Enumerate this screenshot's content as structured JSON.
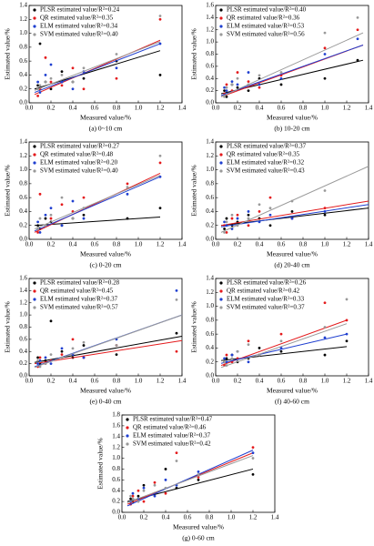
{
  "chart_data": [
    {
      "type": "scatter",
      "caption": "(a) 0~10 cm",
      "xlabel": "Measured value/%",
      "ylabel": "Estimated value/%",
      "xlim": [
        0,
        1.4
      ],
      "ylim": [
        0,
        1.4
      ],
      "xticks": [
        {
          "value": 0,
          "label": "0.0"
        },
        0.2,
        0.4,
        0.6,
        0.8,
        {
          "value": 1,
          "label": "1.0"
        },
        1.2,
        1.4
      ],
      "yticks": [
        {
          "value": 0,
          "label": "0.0"
        },
        0.2,
        0.4,
        0.6,
        0.8,
        {
          "value": 1,
          "label": "1.0"
        },
        1.2,
        1.4
      ],
      "x": [
        0.08,
        0.1,
        0.15,
        0.2,
        0.3,
        0.4,
        0.5,
        0.8,
        1.2
      ],
      "series": [
        {
          "name": "PLSR estimated value/R²=0.24",
          "color": "#000000",
          "values": [
            0.25,
            0.85,
            0.3,
            0.2,
            0.45,
            0.3,
            0.35,
            0.6,
            0.4
          ],
          "fit_x": [
            0.05,
            1.2
          ],
          "fit_y": [
            0.2,
            0.75
          ]
        },
        {
          "name": "QR estimated value/R²=0.35",
          "color": "#e41a1c",
          "values": [
            0.1,
            0.2,
            0.65,
            0.3,
            0.25,
            0.5,
            0.2,
            0.35,
            1.2
          ],
          "fit_x": [
            0.05,
            1.2
          ],
          "fit_y": [
            0.12,
            0.9
          ]
        },
        {
          "name": "ELM estimated value/R²=0.34",
          "color": "#1f3fd0",
          "values": [
            0.3,
            0.15,
            0.4,
            0.55,
            0.3,
            0.2,
            0.45,
            0.5,
            0.85
          ],
          "fit_x": [
            0.05,
            1.2
          ],
          "fit_y": [
            0.15,
            0.85
          ]
        },
        {
          "name": "SVM estimated value/R²=0.40",
          "color": "#999999",
          "values": [
            0.2,
            0.25,
            0.3,
            0.35,
            0.4,
            0.3,
            0.5,
            0.7,
            1.25
          ],
          "fit_x": [
            0.05,
            1.2
          ],
          "fit_y": [
            0.18,
            0.88
          ]
        }
      ]
    },
    {
      "type": "scatter",
      "caption": "(b) 10-20 cm",
      "xlabel": "Measured value/%",
      "ylabel": "Estimated value/%",
      "xlim": [
        0,
        1.4
      ],
      "ylim": [
        0,
        1.6
      ],
      "xticks": [
        {
          "value": 0,
          "label": "0.0"
        },
        0.2,
        0.4,
        0.6,
        0.8,
        {
          "value": 1,
          "label": "1.0"
        },
        1.2,
        1.4
      ],
      "yticks": [
        {
          "value": 0,
          "label": "0.0"
        },
        0.2,
        0.4,
        0.6,
        0.8,
        {
          "value": 1,
          "label": "1.0"
        },
        1.2,
        1.4,
        1.6
      ],
      "x": [
        0.08,
        0.1,
        0.15,
        0.2,
        0.3,
        0.4,
        0.6,
        1.0,
        1.3
      ],
      "series": [
        {
          "name": "PLSR estimated value/R²=0.40",
          "color": "#000000",
          "values": [
            0.2,
            0.1,
            0.3,
            0.25,
            0.2,
            0.4,
            0.3,
            0.4,
            0.7
          ],
          "fit_x": [
            0.05,
            1.35
          ],
          "fit_y": [
            0.15,
            0.7
          ]
        },
        {
          "name": "QR estimated value/R²=0.36",
          "color": "#e41a1c",
          "values": [
            0.15,
            0.3,
            0.2,
            0.5,
            0.35,
            0.25,
            0.45,
            0.9,
            1.2
          ],
          "fit_x": [
            0.05,
            1.35
          ],
          "fit_y": [
            0.1,
            0.95
          ]
        },
        {
          "name": "ELM estimated value/R²=0.53",
          "color": "#1f3fd0",
          "values": [
            0.25,
            0.2,
            0.35,
            0.3,
            0.5,
            0.3,
            0.4,
            0.8,
            1.05
          ],
          "fit_x": [
            0.05,
            1.35
          ],
          "fit_y": [
            0.12,
            0.95
          ]
        },
        {
          "name": "SVM estimated value/R²=0.56",
          "color": "#999999",
          "values": [
            0.1,
            0.25,
            0.3,
            0.4,
            0.3,
            0.45,
            0.5,
            1.15,
            1.4
          ],
          "fit_x": [
            0.05,
            1.35
          ],
          "fit_y": [
            0.1,
            1.15
          ]
        }
      ]
    },
    {
      "type": "scatter",
      "caption": "(c) 0-20 cm",
      "xlabel": "Measured value/%",
      "ylabel": "Estimated value/%",
      "xlim": [
        0,
        1.4
      ],
      "ylim": [
        0,
        1.4
      ],
      "xticks": [
        {
          "value": 0,
          "label": "0.0"
        },
        0.2,
        0.4,
        0.6,
        0.8,
        {
          "value": 1,
          "label": "1.0"
        },
        1.2,
        1.4
      ],
      "yticks": [
        {
          "value": 0,
          "label": "0.0"
        },
        0.2,
        0.4,
        0.6,
        0.8,
        {
          "value": 1,
          "label": "1.0"
        },
        1.2,
        1.4
      ],
      "x": [
        0.08,
        0.1,
        0.15,
        0.2,
        0.3,
        0.4,
        0.5,
        0.9,
        1.2
      ],
      "series": [
        {
          "name": "PLSR estimated value/R²=0.27",
          "color": "#000000",
          "values": [
            0.2,
            0.15,
            0.3,
            0.25,
            0.2,
            0.3,
            0.35,
            0.3,
            0.45
          ],
          "fit_x": [
            0.05,
            1.2
          ],
          "fit_y": [
            0.2,
            0.32
          ]
        },
        {
          "name": "QR estimated value/R²=0.48",
          "color": "#e41a1c",
          "values": [
            0.1,
            0.65,
            0.2,
            0.3,
            0.5,
            0.4,
            0.6,
            0.8,
            1.1
          ],
          "fit_x": [
            0.05,
            1.2
          ],
          "fit_y": [
            0.1,
            0.95
          ]
        },
        {
          "name": "ELM estimated value/R²=0.20",
          "color": "#1f3fd0",
          "values": [
            0.25,
            0.1,
            0.35,
            0.45,
            0.2,
            0.55,
            0.3,
            0.65,
            0.9
          ],
          "fit_x": [
            0.05,
            1.2
          ],
          "fit_y": [
            0.12,
            0.9
          ]
        },
        {
          "name": "SVM estimated value/R²=0.40",
          "color": "#999999",
          "values": [
            0.15,
            0.3,
            0.2,
            0.35,
            0.6,
            0.3,
            0.45,
            0.75,
            1.2
          ],
          "fit_x": [
            0.05,
            1.2
          ],
          "fit_y": [
            0.15,
            0.92
          ]
        }
      ]
    },
    {
      "type": "scatter",
      "caption": "(d) 20-40 cm",
      "xlabel": "Measured value/%",
      "ylabel": "Estimated value/%",
      "xlim": [
        0,
        1.4
      ],
      "ylim": [
        0,
        1.4
      ],
      "xticks": [
        {
          "value": 0,
          "label": "0.0"
        },
        0.2,
        0.4,
        0.6,
        0.8,
        {
          "value": 1,
          "label": "1.0"
        },
        1.2,
        1.4
      ],
      "yticks": [
        {
          "value": 0,
          "label": "0.0"
        },
        0.2,
        0.4,
        0.6,
        0.8,
        {
          "value": 1,
          "label": "1.0"
        },
        1.2,
        1.4
      ],
      "x": [
        0.08,
        0.1,
        0.15,
        0.2,
        0.3,
        0.4,
        0.5,
        0.7,
        1.0
      ],
      "series": [
        {
          "name": "PLSR estimated value/R²=0.37",
          "color": "#000000",
          "values": [
            0.15,
            0.3,
            0.2,
            0.25,
            0.35,
            0.3,
            0.2,
            0.4,
            0.35
          ],
          "fit_x": [
            0.05,
            1.4
          ],
          "fit_y": [
            0.2,
            0.45
          ]
        },
        {
          "name": "QR estimated value/R²=0.35",
          "color": "#e41a1c",
          "values": [
            0.2,
            0.1,
            0.3,
            0.35,
            0.2,
            0.4,
            0.6,
            0.3,
            0.45
          ],
          "fit_x": [
            0.05,
            1.4
          ],
          "fit_y": [
            0.2,
            0.55
          ]
        },
        {
          "name": "ELM estimated value/R²=0.32",
          "color": "#1f3fd0",
          "values": [
            0.25,
            0.2,
            0.15,
            0.3,
            0.4,
            0.25,
            0.35,
            0.3,
            0.4
          ],
          "fit_x": [
            0.05,
            1.4
          ],
          "fit_y": [
            0.18,
            0.5
          ]
        },
        {
          "name": "SVM estimated value/R²=0.43",
          "color": "#999999",
          "values": [
            0.1,
            0.25,
            0.35,
            0.2,
            0.3,
            0.5,
            0.45,
            0.55,
            0.7
          ],
          "fit_x": [
            0.05,
            1.4
          ],
          "fit_y": [
            0.1,
            1.05
          ]
        }
      ]
    },
    {
      "type": "scatter",
      "caption": "(e) 0-40 cm",
      "xlabel": "Measured value/%",
      "ylabel": "Estimated value/%",
      "xlim": [
        0,
        1.4
      ],
      "ylim": [
        0,
        1.6
      ],
      "xticks": [
        {
          "value": 0,
          "label": "0.0"
        },
        0.2,
        0.4,
        0.6,
        0.8,
        {
          "value": 1,
          "label": "1.0"
        },
        1.2,
        1.4
      ],
      "yticks": [
        {
          "value": 0,
          "label": "0.0"
        },
        0.2,
        0.4,
        0.6,
        0.8,
        {
          "value": 1,
          "label": "1.0"
        },
        1.2,
        1.4,
        1.6
      ],
      "x": [
        0.08,
        0.1,
        0.15,
        0.2,
        0.3,
        0.4,
        0.5,
        0.8,
        1.35
      ],
      "series": [
        {
          "name": "PLSR estimated value/R²=0.28",
          "color": "#000000",
          "values": [
            0.3,
            0.2,
            0.25,
            0.9,
            0.4,
            0.3,
            0.5,
            0.35,
            0.7
          ],
          "fit_x": [
            0.05,
            1.4
          ],
          "fit_y": [
            0.22,
            0.65
          ]
        },
        {
          "name": "QR estimated value/R²=0.45",
          "color": "#e41a1c",
          "values": [
            0.15,
            0.3,
            0.2,
            0.25,
            0.35,
            0.6,
            0.3,
            0.5,
            0.4
          ],
          "fit_x": [
            0.05,
            1.4
          ],
          "fit_y": [
            0.2,
            0.58
          ]
        },
        {
          "name": "ELM estimated value/R²=0.37",
          "color": "#1f3fd0",
          "values": [
            0.2,
            0.25,
            0.3,
            0.2,
            0.45,
            0.35,
            0.3,
            0.6,
            1.4
          ],
          "fit_x": [
            0.05,
            1.4
          ],
          "fit_y": [
            0.15,
            1.0
          ]
        },
        {
          "name": "SVM estimated value/R²=0.57",
          "color": "#999999",
          "values": [
            0.25,
            0.15,
            0.2,
            0.35,
            0.3,
            0.45,
            0.55,
            0.5,
            1.25
          ],
          "fit_x": [
            0.05,
            1.4
          ],
          "fit_y": [
            0.14,
            1.0
          ]
        }
      ]
    },
    {
      "type": "scatter",
      "caption": "(f) 40-60 cm",
      "xlabel": "Measured value/%",
      "ylabel": "Estimated value/%",
      "xlim": [
        0,
        1.4
      ],
      "ylim": [
        0,
        1.4
      ],
      "xticks": [
        {
          "value": 0,
          "label": "0.0"
        },
        0.2,
        0.4,
        0.6,
        0.8,
        {
          "value": 1,
          "label": "1.0"
        },
        1.2,
        1.4
      ],
      "yticks": [
        {
          "value": 0,
          "label": "0.0"
        },
        0.2,
        0.4,
        0.6,
        0.8,
        {
          "value": 1,
          "label": "1.0"
        },
        1.2,
        1.4
      ],
      "x": [
        0.08,
        0.1,
        0.15,
        0.2,
        0.3,
        0.4,
        0.6,
        1.0,
        1.2
      ],
      "series": [
        {
          "name": "PLSR estimated value/R²=0.26",
          "color": "#000000",
          "values": [
            0.2,
            0.25,
            0.3,
            0.2,
            0.25,
            0.4,
            0.35,
            0.3,
            0.5
          ],
          "fit_x": [
            0.05,
            1.2
          ],
          "fit_y": [
            0.22,
            0.42
          ]
        },
        {
          "name": "QR estimated value/R²=0.42",
          "color": "#e41a1c",
          "values": [
            0.15,
            0.3,
            0.2,
            0.25,
            0.5,
            0.3,
            0.6,
            1.05,
            0.8
          ],
          "fit_x": [
            0.05,
            1.2
          ],
          "fit_y": [
            0.15,
            0.8
          ]
        },
        {
          "name": "ELM estimated value/R²=0.33",
          "color": "#1f3fd0",
          "values": [
            0.25,
            0.2,
            0.3,
            0.35,
            0.2,
            0.3,
            0.4,
            0.55,
            0.6
          ],
          "fit_x": [
            0.05,
            1.2
          ],
          "fit_y": [
            0.18,
            0.6
          ]
        },
        {
          "name": "SVM estimated value/R²=0.37",
          "color": "#999999",
          "values": [
            0.2,
            0.15,
            0.25,
            0.35,
            0.45,
            0.3,
            0.5,
            0.7,
            1.1
          ],
          "fit_x": [
            0.05,
            1.2
          ],
          "fit_y": [
            0.12,
            0.75
          ]
        }
      ]
    },
    {
      "type": "scatter",
      "caption": "(g) 0-60 cm",
      "xlabel": "Measured value/%",
      "ylabel": "Estimated value/%",
      "xlim": [
        0,
        1.4
      ],
      "ylim": [
        0,
        1.8
      ],
      "xticks": [
        {
          "value": 0,
          "label": "0.0"
        },
        0.2,
        0.4,
        0.6,
        0.8,
        {
          "value": 1,
          "label": "1.0"
        },
        1.2,
        1.4
      ],
      "yticks": [
        {
          "value": 0,
          "label": "0.0"
        },
        0.2,
        0.4,
        0.6,
        0.8,
        {
          "value": 1,
          "label": "1.0"
        },
        1.2,
        1.4,
        1.6,
        1.8
      ],
      "x": [
        0.08,
        0.1,
        0.15,
        0.2,
        0.3,
        0.4,
        0.5,
        0.7,
        1.2
      ],
      "series": [
        {
          "name": "PLSR estimated value/R²=0.47",
          "color": "#000000",
          "values": [
            0.25,
            0.2,
            0.3,
            0.5,
            0.35,
            0.8,
            0.45,
            0.6,
            0.7
          ],
          "fit_x": [
            0.05,
            1.2
          ],
          "fit_y": [
            0.2,
            0.8
          ]
        },
        {
          "name": "QR estimated value/R²=0.46",
          "color": "#e41a1c",
          "values": [
            0.15,
            0.3,
            0.4,
            0.2,
            0.55,
            0.35,
            1.1,
            0.65,
            1.2
          ],
          "fit_x": [
            0.05,
            1.2
          ],
          "fit_y": [
            0.15,
            1.1
          ]
        },
        {
          "name": "ELM estimated value/R²=0.37",
          "color": "#1f3fd0",
          "values": [
            0.2,
            0.35,
            0.25,
            0.45,
            0.3,
            0.6,
            0.5,
            0.75,
            1.1
          ],
          "fit_x": [
            0.05,
            1.2
          ],
          "fit_y": [
            0.12,
            1.15
          ]
        },
        {
          "name": "SVM estimated value/R²=0.42",
          "color": "#999999",
          "values": [
            0.3,
            0.25,
            0.2,
            0.4,
            0.5,
            0.45,
            0.95,
            0.7,
            1.0
          ],
          "fit_x": [
            0.05,
            1.2
          ],
          "fit_y": [
            0.18,
            1.05
          ]
        }
      ]
    }
  ]
}
